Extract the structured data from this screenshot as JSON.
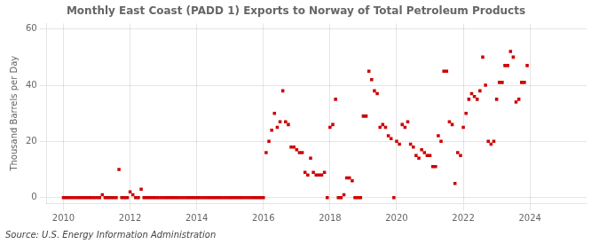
{
  "chart_data": {
    "type": "scatter",
    "title": "Monthly East Coast (PADD 1) Exports to Norway of Total Petroleum Products",
    "ylabel": "Thousand Barrels per Day",
    "annotation": "Source: U.S. Energy Information Administration",
    "xlim": [
      2009.5,
      2025.7
    ],
    "ylim": [
      -2,
      62
    ],
    "xticks": [
      2010,
      2012,
      2014,
      2016,
      2018,
      2020,
      2022,
      2024
    ],
    "yticks": [
      0,
      20,
      40,
      60
    ],
    "grid": true,
    "color": "#cc0000",
    "marker": "square",
    "x": [
      2010.0,
      2010.083,
      2010.167,
      2010.25,
      2010.333,
      2010.417,
      2010.5,
      2010.583,
      2010.667,
      2010.75,
      2010.833,
      2010.917,
      2011.0,
      2011.083,
      2011.167,
      2011.25,
      2011.333,
      2011.417,
      2011.5,
      2011.583,
      2011.667,
      2011.75,
      2011.833,
      2011.917,
      2012.0,
      2012.083,
      2012.167,
      2012.25,
      2012.333,
      2012.417,
      2012.5,
      2012.583,
      2012.667,
      2012.75,
      2012.833,
      2012.917,
      2013.0,
      2013.083,
      2013.167,
      2013.25,
      2013.333,
      2013.417,
      2013.5,
      2013.583,
      2013.667,
      2013.75,
      2013.833,
      2013.917,
      2014.0,
      2014.083,
      2014.167,
      2014.25,
      2014.333,
      2014.417,
      2014.5,
      2014.583,
      2014.667,
      2014.75,
      2014.833,
      2014.917,
      2015.0,
      2015.083,
      2015.167,
      2015.25,
      2015.333,
      2015.417,
      2015.5,
      2015.583,
      2015.667,
      2015.75,
      2015.833,
      2015.917,
      2016.0,
      2016.083,
      2016.167,
      2016.25,
      2016.333,
      2016.417,
      2016.5,
      2016.583,
      2016.667,
      2016.75,
      2016.833,
      2016.917,
      2017.0,
      2017.083,
      2017.167,
      2017.25,
      2017.333,
      2017.417,
      2017.5,
      2017.583,
      2017.667,
      2017.75,
      2017.833,
      2017.917,
      2018.0,
      2018.083,
      2018.167,
      2018.25,
      2018.333,
      2018.417,
      2018.5,
      2018.583,
      2018.667,
      2018.75,
      2018.833,
      2018.917,
      2019.0,
      2019.083,
      2019.167,
      2019.25,
      2019.333,
      2019.417,
      2019.5,
      2019.583,
      2019.667,
      2019.75,
      2019.833,
      2019.917,
      2020.0,
      2020.083,
      2020.167,
      2020.25,
      2020.333,
      2020.417,
      2020.5,
      2020.583,
      2020.667,
      2020.75,
      2020.833,
      2020.917,
      2021.0,
      2021.083,
      2021.167,
      2021.25,
      2021.333,
      2021.417,
      2021.5,
      2021.583,
      2021.667,
      2021.75,
      2021.833,
      2021.917,
      2022.0,
      2022.083,
      2022.167,
      2022.25,
      2022.333,
      2022.417,
      2022.5,
      2022.583,
      2022.667,
      2022.75,
      2022.833,
      2022.917,
      2023.0,
      2023.083,
      2023.167,
      2023.25,
      2023.333,
      2023.417,
      2023.5,
      2023.583,
      2023.667,
      2023.75,
      2023.833,
      2023.917
    ],
    "values": [
      0,
      0,
      0,
      0,
      0,
      0,
      0,
      0,
      0,
      0,
      0,
      0,
      0,
      0,
      1,
      0,
      0,
      0,
      0,
      0,
      10,
      0,
      0,
      0,
      2,
      1,
      0,
      0,
      3,
      0,
      0,
      0,
      0,
      0,
      0,
      0,
      0,
      0,
      0,
      0,
      0,
      0,
      0,
      0,
      0,
      0,
      0,
      0,
      0,
      0,
      0,
      0,
      0,
      0,
      0,
      0,
      0,
      0,
      0,
      0,
      0,
      0,
      0,
      0,
      0,
      0,
      0,
      0,
      0,
      0,
      0,
      0,
      0,
      16,
      20,
      24,
      30,
      25,
      27,
      38,
      27,
      26,
      18,
      18,
      17,
      16,
      16,
      9,
      8,
      14,
      9,
      8,
      8,
      8,
      9,
      0,
      25,
      26,
      35,
      0,
      0,
      1,
      7,
      7,
      6,
      0,
      0,
      0,
      29,
      29,
      45,
      42,
      38,
      37,
      25,
      26,
      25,
      22,
      21,
      0,
      20,
      19,
      26,
      25,
      27,
      19,
      18,
      15,
      14,
      17,
      16,
      15,
      15,
      11,
      11,
      22,
      20,
      45,
      45,
      27,
      26,
      5,
      16,
      15,
      25,
      30,
      35,
      37,
      36,
      35,
      38,
      50,
      40,
      20,
      19,
      20,
      35,
      41,
      41,
      47,
      47,
      52,
      50,
      34,
      35,
      41,
      41,
      47
    ]
  }
}
